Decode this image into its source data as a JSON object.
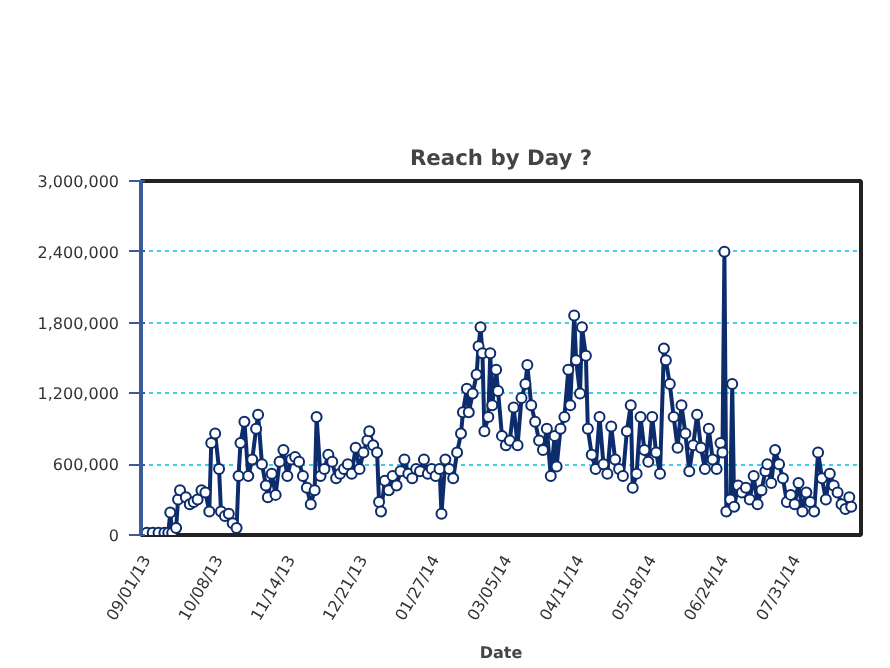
{
  "chart_data": {
    "type": "line",
    "title": "Reach by Day ?",
    "xlabel": "Date",
    "xlim": [
      "2013-08-29",
      "2014-09-02"
    ],
    "xticks": [
      {
        "value": "2013-09-01",
        "label": "09/01/13"
      },
      {
        "value": "2013-10-08",
        "label": "10/08/13"
      },
      {
        "value": "2013-11-14",
        "label": "11/14/13"
      },
      {
        "value": "2013-12-21",
        "label": "12/21/13"
      },
      {
        "value": "2014-01-27",
        "label": "01/27/14"
      },
      {
        "value": "2014-03-05",
        "label": "03/05/14"
      },
      {
        "value": "2014-04-11",
        "label": "04/11/14"
      },
      {
        "value": "2014-05-18",
        "label": "05/18/14"
      },
      {
        "value": "2014-06-24",
        "label": "06/24/14"
      },
      {
        "value": "2014-07-31",
        "label": "07/31/14"
      }
    ],
    "ylim": [
      0,
      3000000
    ],
    "yticks": [
      0,
      {
        "value": 600000,
        "label": "600,000"
      },
      {
        "value": 1200000,
        "label": "1,200,000"
      },
      {
        "value": 1800000,
        "label": "1,800,000"
      },
      {
        "value": 2400000,
        "label": "2,400,000"
      },
      {
        "value": 3000000,
        "label": "3,000,000"
      }
    ],
    "grid": "y",
    "marker": "circle",
    "line_style": "solid",
    "series": [
      {
        "color": "#0d2c6c",
        "x": [
          "2013-09-01",
          "2013-09-04",
          "2013-09-07",
          "2013-09-10",
          "2013-09-12",
          "2013-09-13",
          "2013-09-14",
          "2013-09-16",
          "2013-09-17",
          "2013-09-18",
          "2013-09-21",
          "2013-09-23",
          "2013-09-25",
          "2013-09-27",
          "2013-09-29",
          "2013-10-01",
          "2013-10-03",
          "2013-10-04",
          "2013-10-06",
          "2013-10-08",
          "2013-10-09",
          "2013-10-11",
          "2013-10-13",
          "2013-10-15",
          "2013-10-17",
          "2013-10-18",
          "2013-10-19",
          "2013-10-21",
          "2013-10-23",
          "2013-10-25",
          "2013-10-27",
          "2013-10-28",
          "2013-10-30",
          "2013-11-01",
          "2013-11-02",
          "2013-11-04",
          "2013-11-06",
          "2013-11-08",
          "2013-11-10",
          "2013-11-12",
          "2013-11-14",
          "2013-11-16",
          "2013-11-18",
          "2013-11-20",
          "2013-11-22",
          "2013-11-24",
          "2013-11-26",
          "2013-11-27",
          "2013-11-29",
          "2013-12-01",
          "2013-12-03",
          "2013-12-05",
          "2013-12-07",
          "2013-12-09",
          "2013-12-11",
          "2013-12-13",
          "2013-12-15",
          "2013-12-17",
          "2013-12-19",
          "2013-12-21",
          "2013-12-23",
          "2013-12-24",
          "2013-12-26",
          "2013-12-28",
          "2013-12-29",
          "2013-12-30",
          "2014-01-01",
          "2014-01-03",
          "2014-01-05",
          "2014-01-07",
          "2014-01-09",
          "2014-01-11",
          "2014-01-13",
          "2014-01-15",
          "2014-01-17",
          "2014-01-19",
          "2014-01-21",
          "2014-01-23",
          "2014-01-25",
          "2014-01-27",
          "2014-01-29",
          "2014-01-30",
          "2014-02-01",
          "2014-02-03",
          "2014-02-05",
          "2014-02-07",
          "2014-02-09",
          "2014-02-10",
          "2014-02-12",
          "2014-02-13",
          "2014-02-15",
          "2014-02-17",
          "2014-02-18",
          "2014-02-19",
          "2014-02-20",
          "2014-02-21",
          "2014-02-23",
          "2014-02-24",
          "2014-02-25",
          "2014-02-27",
          "2014-02-28",
          "2014-03-02",
          "2014-03-04",
          "2014-03-06",
          "2014-03-08",
          "2014-03-10",
          "2014-03-12",
          "2014-03-14",
          "2014-03-15",
          "2014-03-17",
          "2014-03-19",
          "2014-03-21",
          "2014-03-23",
          "2014-03-25",
          "2014-03-27",
          "2014-03-29",
          "2014-03-30",
          "2014-04-01",
          "2014-04-03",
          "2014-04-05",
          "2014-04-06",
          "2014-04-08",
          "2014-04-09",
          "2014-04-11",
          "2014-04-12",
          "2014-04-14",
          "2014-04-15",
          "2014-04-17",
          "2014-04-19",
          "2014-04-21",
          "2014-04-23",
          "2014-04-25",
          "2014-04-27",
          "2014-04-29",
          "2014-05-01",
          "2014-05-03",
          "2014-05-05",
          "2014-05-07",
          "2014-05-08",
          "2014-05-10",
          "2014-05-12",
          "2014-05-14",
          "2014-05-16",
          "2014-05-18",
          "2014-05-20",
          "2014-05-22",
          "2014-05-24",
          "2014-05-25",
          "2014-05-27",
          "2014-05-29",
          "2014-05-31",
          "2014-06-02",
          "2014-06-04",
          "2014-06-06",
          "2014-06-08",
          "2014-06-10",
          "2014-06-12",
          "2014-06-14",
          "2014-06-16",
          "2014-06-18",
          "2014-06-20",
          "2014-06-22",
          "2014-06-23",
          "2014-06-24",
          "2014-06-25",
          "2014-06-27",
          "2014-06-28",
          "2014-06-29",
          "2014-07-01",
          "2014-07-03",
          "2014-07-05",
          "2014-07-07",
          "2014-07-09",
          "2014-07-11",
          "2014-07-13",
          "2014-07-15",
          "2014-07-16",
          "2014-07-18",
          "2014-07-20",
          "2014-07-22",
          "2014-07-24",
          "2014-07-26",
          "2014-07-28",
          "2014-07-30",
          "2014-08-01",
          "2014-08-03",
          "2014-08-05",
          "2014-08-07",
          "2014-08-09",
          "2014-08-11",
          "2014-08-13",
          "2014-08-15",
          "2014-08-17",
          "2014-08-19",
          "2014-08-21",
          "2014-08-23",
          "2014-08-25",
          "2014-08-27",
          "2014-08-28"
        ],
        "values": [
          20000,
          20000,
          20000,
          20000,
          20000,
          190000,
          20000,
          60000,
          300000,
          380000,
          320000,
          260000,
          280000,
          300000,
          380000,
          360000,
          200000,
          780000,
          860000,
          560000,
          200000,
          160000,
          180000,
          100000,
          60000,
          500000,
          780000,
          960000,
          500000,
          640000,
          900000,
          1020000,
          600000,
          420000,
          320000,
          520000,
          340000,
          620000,
          720000,
          500000,
          640000,
          660000,
          620000,
          500000,
          400000,
          260000,
          380000,
          1000000,
          500000,
          560000,
          680000,
          620000,
          480000,
          520000,
          560000,
          600000,
          520000,
          740000,
          560000,
          700000,
          800000,
          880000,
          760000,
          700000,
          280000,
          200000,
          460000,
          380000,
          500000,
          420000,
          540000,
          640000,
          520000,
          480000,
          560000,
          540000,
          640000,
          520000,
          560000,
          500000,
          560000,
          180000,
          640000,
          560000,
          480000,
          700000,
          860000,
          1040000,
          1240000,
          1040000,
          1200000,
          1360000,
          1600000,
          1760000,
          1540000,
          880000,
          1000000,
          1540000,
          1100000,
          1400000,
          1220000,
          840000,
          760000,
          800000,
          1080000,
          760000,
          1160000,
          1280000,
          1440000,
          1100000,
          960000,
          800000,
          720000,
          900000,
          500000,
          840000,
          580000,
          900000,
          1000000,
          1400000,
          1100000,
          1860000,
          1480000,
          1200000,
          1760000,
          1520000,
          900000,
          680000,
          560000,
          1000000,
          600000,
          520000,
          920000,
          640000,
          560000,
          500000,
          880000,
          1100000,
          400000,
          520000,
          1000000,
          720000,
          620000,
          1000000,
          700000,
          520000,
          1580000,
          1480000,
          1280000,
          1000000,
          740000,
          1100000,
          860000,
          540000,
          760000,
          1020000,
          740000,
          560000,
          900000,
          640000,
          560000,
          780000,
          700000,
          2400000,
          200000,
          300000,
          1280000,
          240000,
          420000,
          360000,
          400000,
          300000,
          500000,
          260000,
          380000,
          540000,
          600000,
          440000,
          720000,
          600000,
          480000,
          280000,
          340000,
          260000,
          440000,
          200000,
          360000,
          280000,
          200000,
          700000,
          480000,
          300000,
          520000,
          420000,
          360000,
          260000,
          220000,
          320000,
          240000
        ]
      }
    ]
  }
}
